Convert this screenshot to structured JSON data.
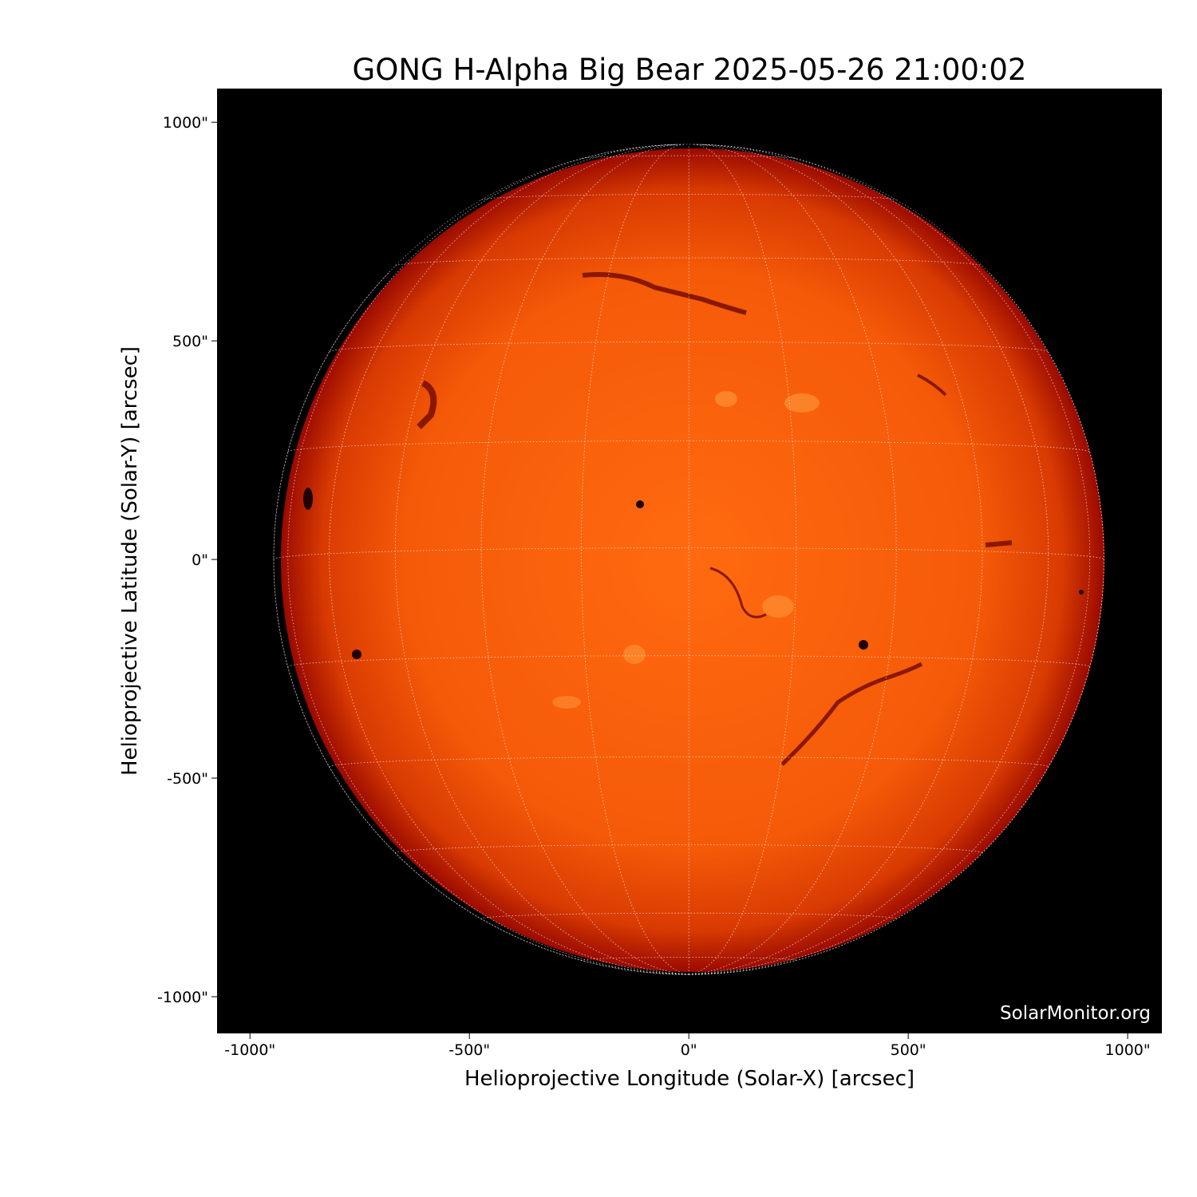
{
  "chart_data": {
    "type": "heatmap",
    "title": "GONG H-Alpha Big Bear 2025-05-26 21:00:02",
    "xlabel": "Helioprojective Longitude (Solar-X) [arcsec]",
    "ylabel": "Helioprojective Latitude (Solar-Y) [arcsec]",
    "xlim": [
      -1075,
      1078
    ],
    "ylim": [
      -1084,
      1077
    ],
    "xticks": [
      -1000,
      -500,
      0,
      500,
      1000
    ],
    "xtick_labels": [
      "-1000\"",
      "-500\"",
      "0\"",
      "500\"",
      "1000\""
    ],
    "yticks": [
      1000,
      500,
      0,
      -500,
      -1000
    ],
    "ytick_labels": [
      "1000\"",
      "500\"",
      "0\"",
      "-500\"",
      "-1000\""
    ],
    "solar_radius_arcsec": 946,
    "grid": "heliographic lat/lon every 15 degrees, dotted white",
    "watermark": "SolarMonitor.org",
    "colors": {
      "background": "#000000",
      "disk_center": "#ff6a10",
      "disk_limb": "#a80c00",
      "grid": "#ffffff"
    }
  }
}
